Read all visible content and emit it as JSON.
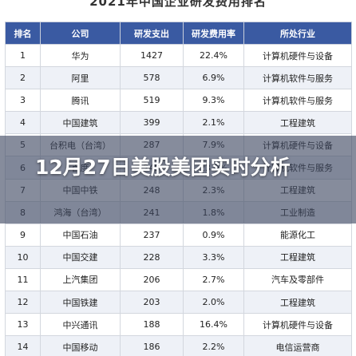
{
  "top_title": "2021年中国企业研发费用排名",
  "headline": "12月27日美股美团实时分析",
  "table": {
    "headers": [
      "排名",
      "公司",
      "研发支出",
      "研发费用率",
      "所处行业"
    ],
    "rows": [
      [
        "1",
        "华为",
        "1427",
        "22.4%",
        "计算机硬件与设备"
      ],
      [
        "2",
        "阿里",
        "578",
        "6.9%",
        "计算机软件与服务"
      ],
      [
        "3",
        "腾讯",
        "519",
        "9.3%",
        "计算机软件与服务"
      ],
      [
        "4",
        "中国建筑",
        "399",
        "2.1%",
        "工程建筑"
      ],
      [
        "5",
        "台积电（台湾）",
        "287",
        "7.9%",
        "计算机硬件与设备"
      ],
      [
        "6",
        "百度",
        "249",
        "23.0%",
        "计算机软件与服务"
      ],
      [
        "7",
        "中国中铁",
        "248",
        "2.3%",
        "工程建筑"
      ],
      [
        "8",
        "鸿海（台湾）",
        "241",
        "1.8%",
        "工业制造"
      ],
      [
        "9",
        "中国石油",
        "237",
        "0.9%",
        "能源化工"
      ],
      [
        "10",
        "中国交建",
        "228",
        "3.3%",
        "工程建筑"
      ],
      [
        "11",
        "上汽集团",
        "206",
        "2.7%",
        "汽车及零部件"
      ],
      [
        "12",
        "中国铁建",
        "203",
        "2.0%",
        "工程建筑"
      ],
      [
        "13",
        "中兴通讯",
        "188",
        "16.4%",
        "计算机硬件与设备"
      ],
      [
        "14",
        "中国移动",
        "186",
        "2.2%",
        "电信运营商"
      ]
    ]
  }
}
